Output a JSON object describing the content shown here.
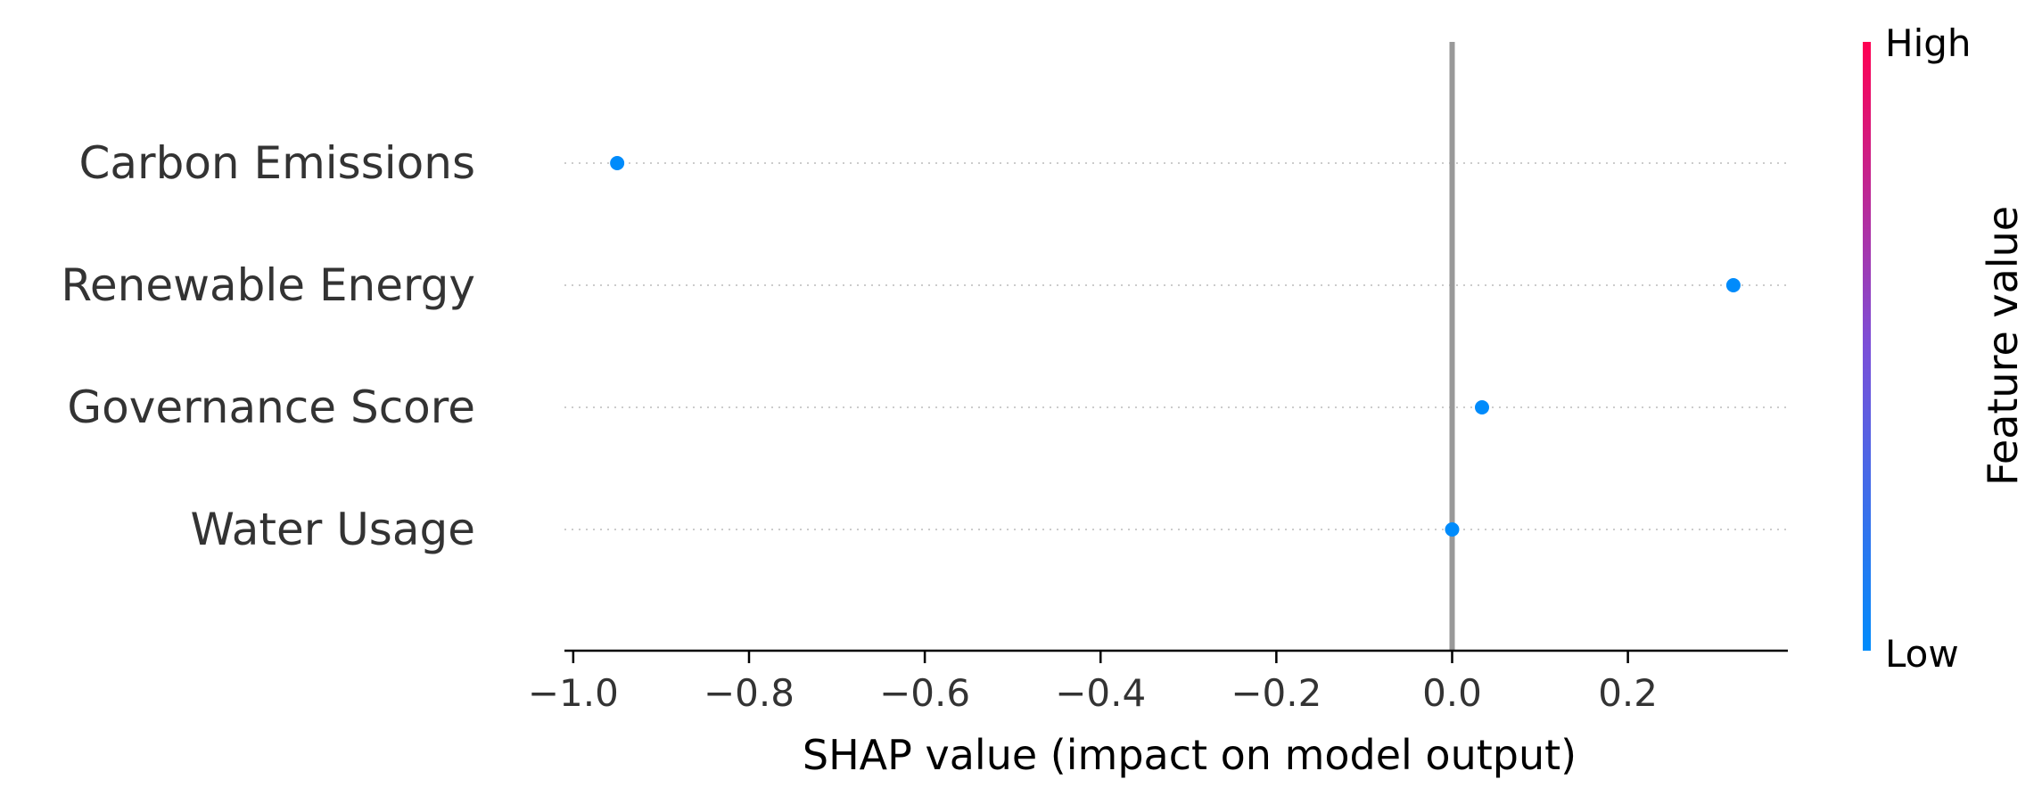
{
  "chart_data": {
    "type": "scatter",
    "title": "",
    "xlabel": "SHAP value (impact on model output)",
    "ylabel": "",
    "xlim": [
      -1.01,
      0.382
    ],
    "xticks": [
      -1.0,
      -0.8,
      -0.6,
      -0.4,
      -0.2,
      0.0,
      0.2
    ],
    "xtick_labels": [
      "−1.0",
      "−0.8",
      "−0.6",
      "−0.4",
      "−0.2",
      "0.0",
      "0.2"
    ],
    "features": [
      "Carbon Emissions",
      "Renewable Energy",
      "Governance Score",
      "Water Usage"
    ],
    "points": [
      {
        "feature": "Carbon Emissions",
        "x": -0.95,
        "feature_value": "low"
      },
      {
        "feature": "Renewable Energy",
        "x": 0.32,
        "feature_value": "low"
      },
      {
        "feature": "Governance Score",
        "x": 0.034,
        "feature_value": "low"
      },
      {
        "feature": "Water Usage",
        "x": 0.0,
        "feature_value": "low"
      }
    ],
    "reference_line_x": 0.0,
    "grid": false,
    "colorbar": {
      "title": "Feature value",
      "high_label": "High",
      "low_label": "Low",
      "high_color": "#ff0052",
      "low_color": "#008bfb"
    },
    "point_color": "#008bfb",
    "reference_line_color": "#999999"
  }
}
